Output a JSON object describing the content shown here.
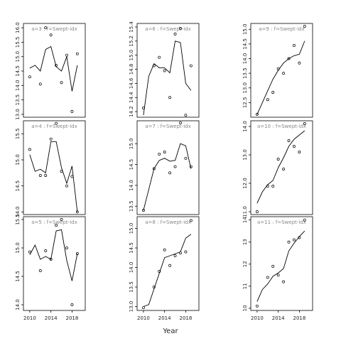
{
  "xlabel": "Year",
  "chart_data": [
    {
      "type": "scatter-line",
      "strip": "a=3  :  f=Swept-idx",
      "x": [
        2010,
        2011,
        2012,
        2013,
        2014,
        2015,
        2016,
        2017,
        2018,
        2019
      ],
      "xlim": [
        2008.8,
        2020.5
      ],
      "points": [
        14.3,
        null,
        14.05,
        16.0,
        15.75,
        14.7,
        14.1,
        15.05,
        13.1,
        15.1
      ],
      "fit": [
        14.6,
        14.7,
        14.5,
        15.25,
        15.35,
        14.65,
        14.5,
        15.0,
        13.8,
        14.7
      ],
      "ylim": [
        12.9,
        16.15
      ],
      "yticks": [
        {
          "value": 13,
          "label": "13.0"
        },
        13.5,
        {
          "value": 14,
          "label": "14.0"
        },
        14.5,
        {
          "value": 15,
          "label": "15.0"
        },
        15.5,
        {
          "value": 16,
          "label": "16.0"
        }
      ]
    },
    {
      "type": "scatter-line",
      "strip": "a=6  :  f=Swept-idx",
      "x": [
        2010,
        2011,
        2012,
        2013,
        2014,
        2015,
        2016,
        2017,
        2018,
        2019
      ],
      "xlim": [
        2008.8,
        2020.5
      ],
      "points": [
        14.25,
        null,
        14.85,
        14.97,
        14.78,
        14.4,
        15.3,
        15.38,
        14.15,
        14.85
      ],
      "fit": [
        14.15,
        14.7,
        14.88,
        14.82,
        14.82,
        14.75,
        15.2,
        15.18,
        14.6,
        14.5
      ],
      "ylim": [
        14.12,
        15.45
      ],
      "yticks": [
        14.2,
        14.4,
        14.6,
        14.8,
        {
          "value": 15,
          "label": "15.0"
        },
        15.2,
        15.4
      ]
    },
    {
      "type": "scatter-line",
      "strip": "a=9  :  f=Swept-idx",
      "x": [
        2010,
        2011,
        2012,
        2013,
        2014,
        2015,
        2016,
        2017,
        2018,
        2019
      ],
      "xlim": [
        2008.8,
        2020.5
      ],
      "points": [
        12.1,
        null,
        12.6,
        12.85,
        13.65,
        13.5,
        14.0,
        14.45,
        13.85,
        15.1
      ],
      "fit": [
        12.1,
        12.5,
        12.9,
        13.3,
        13.6,
        13.85,
        14.0,
        14.1,
        14.15,
        14.6
      ],
      "ylim": [
        12.0,
        15.2
      ],
      "yticks": [
        12.5,
        {
          "value": 13,
          "label": "13.0"
        },
        13.5,
        {
          "value": 14,
          "label": "14.0"
        },
        14.5,
        {
          "value": 15,
          "label": "15.0"
        }
      ]
    },
    {
      "type": "scatter-line",
      "strip": "a=4  :  f=Swept-idx",
      "x": [
        2010,
        2011,
        2012,
        2013,
        2014,
        2015,
        2016,
        2017,
        2018,
        2019
      ],
      "xlim": [
        2008.8,
        2020.5
      ],
      "points": [
        15.2,
        null,
        14.7,
        14.7,
        15.4,
        15.7,
        14.78,
        14.5,
        14.68,
        14.0
      ],
      "fit": [
        15.1,
        14.78,
        14.82,
        14.75,
        15.35,
        15.35,
        14.85,
        14.55,
        14.88,
        14.0
      ],
      "ylim": [
        13.95,
        15.75
      ],
      "yticks": [
        {
          "value": 14,
          "label": "14.0"
        },
        14.5,
        {
          "value": 15,
          "label": "15.0"
        },
        15.5
      ]
    },
    {
      "type": "scatter-line",
      "strip": "a=7  :  f=Swept-idx",
      "x": [
        2010,
        2011,
        2012,
        2013,
        2014,
        2015,
        2016,
        2017,
        2018,
        2019
      ],
      "xlim": [
        2008.8,
        2020.5
      ],
      "points": [
        13.4,
        null,
        14.4,
        14.75,
        14.8,
        14.3,
        14.45,
        15.5,
        14.65,
        14.45
      ],
      "fit": [
        13.4,
        13.9,
        14.4,
        14.6,
        14.65,
        14.58,
        14.6,
        15.0,
        14.95,
        14.4
      ],
      "ylim": [
        13.3,
        15.55
      ],
      "yticks": [
        13.5,
        {
          "value": 14,
          "label": "14.0"
        },
        14.5,
        {
          "value": 15,
          "label": "15.0"
        }
      ]
    },
    {
      "type": "scatter-line",
      "strip": "a=10  :  f=Swept-idx",
      "x": [
        2010,
        2011,
        2012,
        2013,
        2014,
        2015,
        2016,
        2017,
        2018,
        2019
      ],
      "xlim": [
        2008.8,
        2020.5
      ],
      "points": [
        11.0,
        null,
        11.9,
        11.9,
        12.85,
        12.5,
        13.5,
        13.3,
        13.1,
        14.1
      ],
      "fit": [
        11.3,
        11.7,
        11.95,
        12.1,
        12.55,
        12.9,
        13.3,
        13.55,
        13.7,
        13.85
      ],
      "ylim": [
        10.9,
        14.2
      ],
      "yticks": [
        {
          "value": 11,
          "label": "11.0"
        },
        {
          "value": 12,
          "label": "12.0"
        },
        {
          "value": 13,
          "label": "13.0"
        },
        {
          "value": 14,
          "label": "14.0"
        }
      ]
    },
    {
      "type": "scatter-line",
      "strip": "a=5  :  f=Swept-idx",
      "x": [
        2010,
        2011,
        2012,
        2013,
        2014,
        2015,
        2016,
        2017,
        2018,
        2019
      ],
      "xlim": [
        2008.8,
        2020.5
      ],
      "xticks": [
        2010,
        2014,
        2018
      ],
      "points": [
        14.93,
        null,
        14.6,
        14.95,
        14.8,
        15.4,
        15.5,
        15.0,
        14.0,
        14.9
      ],
      "fit": [
        14.88,
        15.05,
        14.8,
        14.85,
        14.8,
        15.3,
        15.32,
        14.78,
        14.42,
        14.9
      ],
      "ylim": [
        13.9,
        15.55
      ],
      "yticks": [
        {
          "value": 14,
          "label": "14.0"
        },
        14.5,
        {
          "value": 15,
          "label": "15.0"
        },
        15.5
      ]
    },
    {
      "type": "scatter-line",
      "strip": "a=8  :  f=Swept-idx",
      "x": [
        2010,
        2011,
        2012,
        2013,
        2014,
        2015,
        2016,
        2017,
        2018,
        2019
      ],
      "xlim": [
        2008.8,
        2020.5
      ],
      "xticks": [
        2010,
        2014,
        2018
      ],
      "points": [
        12.97,
        null,
        13.5,
        13.9,
        14.45,
        14.05,
        14.3,
        14.37,
        14.4,
        15.2
      ],
      "fit": [
        13.0,
        13.05,
        13.45,
        13.85,
        14.25,
        14.3,
        14.35,
        14.4,
        14.75,
        14.85
      ],
      "ylim": [
        12.9,
        15.3
      ],
      "yticks": [
        {
          "value": 13,
          "label": "13.0"
        },
        13.5,
        {
          "value": 14,
          "label": "14.0"
        },
        14.5,
        {
          "value": 15,
          "label": "15.0"
        }
      ]
    },
    {
      "type": "scatter-line",
      "strip": "a=11  :  f=Swept-idx",
      "x": [
        2010,
        2011,
        2012,
        2013,
        2014,
        2015,
        2016,
        2017,
        2018,
        2019
      ],
      "xlim": [
        2008.8,
        2020.5
      ],
      "xticks": [
        2010,
        2014,
        2018
      ],
      "points": [
        10.1,
        null,
        11.4,
        11.9,
        11.5,
        11.2,
        13.0,
        13.1,
        13.2,
        14.0
      ],
      "fit": [
        10.3,
        10.85,
        11.1,
        11.45,
        11.6,
        11.8,
        12.6,
        12.95,
        13.25,
        13.5
      ],
      "ylim": [
        9.9,
        14.15
      ],
      "yticks": [
        10,
        11,
        12,
        13,
        14
      ]
    }
  ]
}
